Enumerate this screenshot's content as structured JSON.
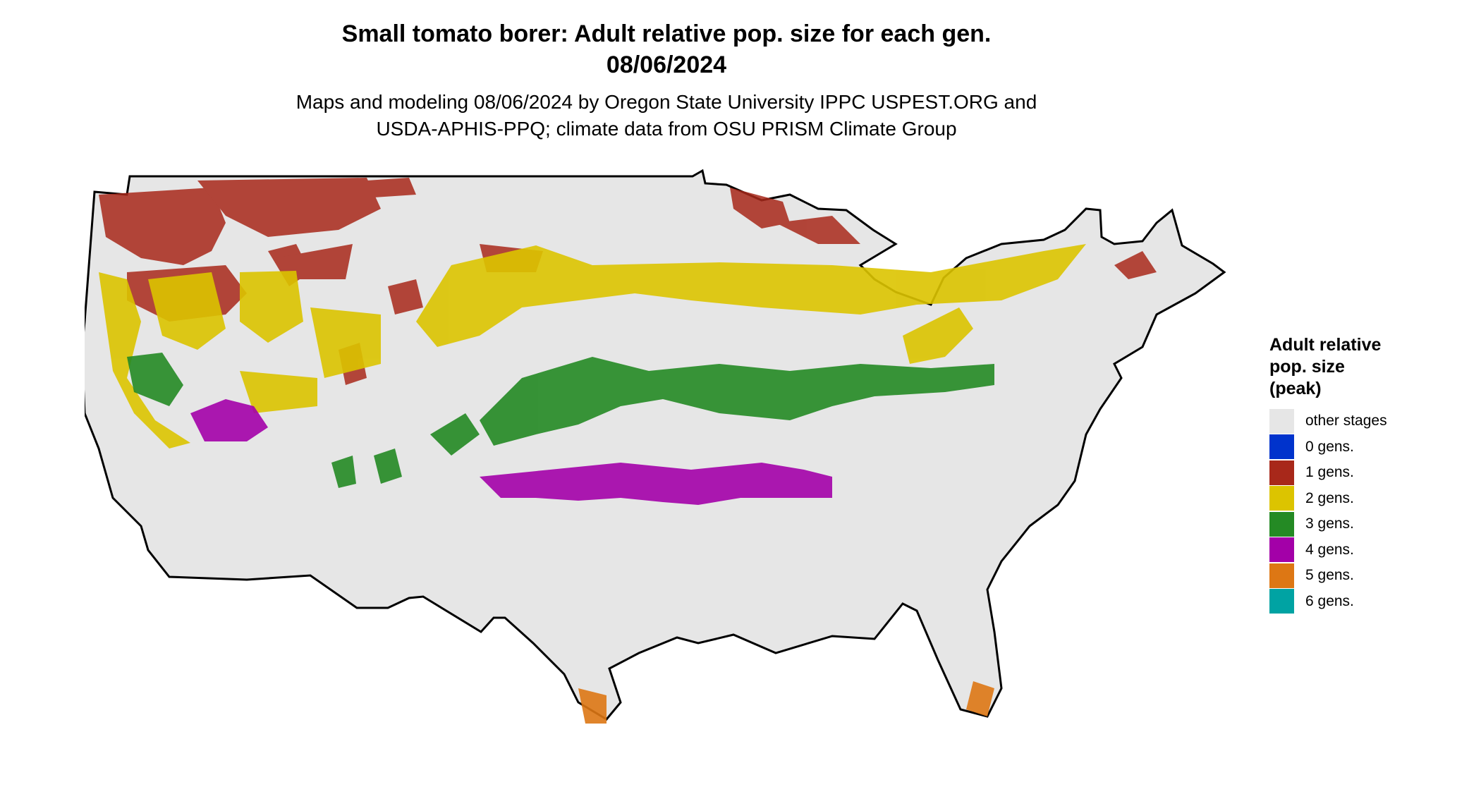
{
  "title": {
    "line1": "Small tomato borer: Adult relative pop. size for each gen.",
    "line2": "08/06/2024"
  },
  "subtitle": {
    "line1": "Maps and modeling 08/06/2024 by Oregon State University IPPC USPEST.ORG and",
    "line2": "USDA-APHIS-PPQ; climate data from OSU PRISM Climate Group"
  },
  "legend": {
    "title_lines": [
      "Adult relative",
      "pop. size",
      "(peak)"
    ],
    "items": [
      {
        "label": "other stages",
        "color": "#e6e6e6"
      },
      {
        "label": "0 gens.",
        "color": "#0033cc"
      },
      {
        "label": "1 gens.",
        "color": "#a8281a"
      },
      {
        "label": "2 gens.",
        "color": "#dcc400"
      },
      {
        "label": "3 gens.",
        "color": "#248a24"
      },
      {
        "label": "4 gens.",
        "color": "#a300a8"
      },
      {
        "label": "5 gens.",
        "color": "#dd7714"
      },
      {
        "label": "6 gens.",
        "color": "#00a3a3"
      }
    ]
  },
  "map": {
    "background_color": "#e6e6e6",
    "border_color": "#000000",
    "region": "Contiguous United States"
  }
}
